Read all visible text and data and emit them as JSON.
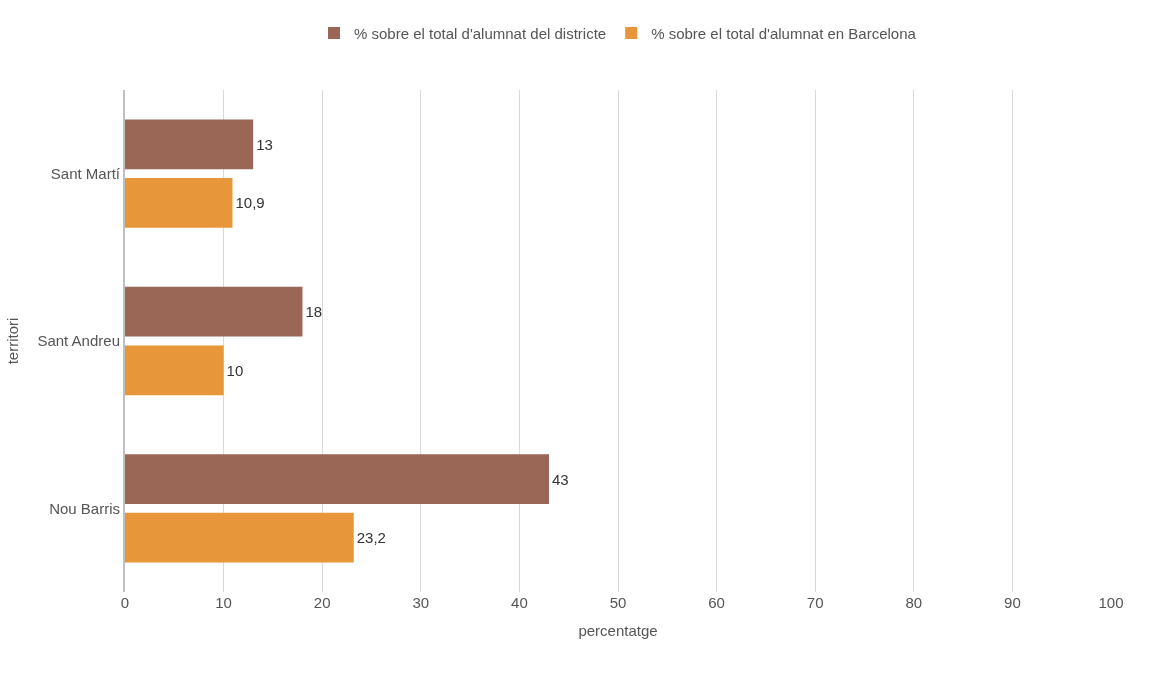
{
  "chart_data": {
    "type": "bar",
    "orientation": "horizontal",
    "xlabel": "percentatge",
    "ylabel": "territori",
    "categories": [
      "Sant Martí",
      "Sant Andreu",
      "Nou Barris"
    ],
    "series": [
      {
        "name": "% sobre el total d'alumnat del districte",
        "color": "#9a6656",
        "values": [
          13,
          18,
          43
        ],
        "value_labels": [
          "13",
          "18",
          "43"
        ]
      },
      {
        "name": "% sobre el total d'alumnat en Barcelona",
        "color": "#e8963a",
        "values": [
          10.9,
          10,
          23.2
        ],
        "value_labels": [
          "10,9",
          "10",
          "23,2"
        ]
      }
    ],
    "xlim": [
      0,
      100
    ],
    "xticks": [
      0,
      10,
      20,
      30,
      40,
      50,
      60,
      70,
      80,
      90,
      100
    ],
    "grid": "x",
    "legend": "top"
  }
}
